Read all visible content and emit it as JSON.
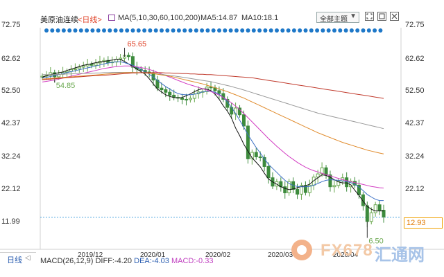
{
  "header": {
    "symbol": "美原油连续",
    "period": "<日线>",
    "ma_label": "MA(5,10,30,60,100,200)",
    "ma5": "MA5:14.87",
    "ma10": "MA10:18.1",
    "theme": "全部主题",
    "theme_arrow": "▼"
  },
  "y_ticks": [
    "72.75",
    "62.62",
    "52.50",
    "42.37",
    "32.24",
    "22.12",
    "11.99"
  ],
  "y_ticks_right": [
    "72.75",
    "62.62",
    "52.50",
    "42.37",
    "32.24",
    "22.12"
  ],
  "x_ticks": [
    "2019/12",
    "2020/01",
    "2020/02",
    "2020/03",
    "2020/04"
  ],
  "last_price": "12.93",
  "bottom": {
    "tab": "日线",
    "tab_arrow": "◁",
    "macd": "MACD(26,12,9)",
    "diff": "DIFF:-4.20",
    "dea": "DEA:-4.03",
    "macd_val": "MACD:-0.33"
  },
  "watermark": {
    "text": "FX678",
    "cn": "汇通网"
  },
  "chart_data": {
    "type": "candlestick",
    "ylim": [
      6.5,
      72.75
    ],
    "y_ticks": [
      72.75,
      62.62,
      52.5,
      42.37,
      32.24,
      22.12,
      11.99
    ],
    "x_ticks": [
      "2019/12",
      "2020/01",
      "2020/02",
      "2020/03",
      "2020/04"
    ],
    "annotations": [
      {
        "label": "65.65",
        "value": 65.65,
        "type": "high"
      },
      {
        "label": "54.85",
        "value": 54.85,
        "type": "low"
      },
      {
        "label": "6.50",
        "value": 6.5,
        "type": "low"
      }
    ],
    "close": [
      56.8,
      57.1,
      57.9,
      56.6,
      57.4,
      58.0,
      58.3,
      58.9,
      59.1,
      59.6,
      60.0,
      60.5,
      60.2,
      60.9,
      61.4,
      61.7,
      61.0,
      61.2,
      62.1,
      62.4,
      63.3,
      62.9,
      59.6,
      59.0,
      58.6,
      58.1,
      57.9,
      55.6,
      53.1,
      52.6,
      51.8,
      50.9,
      50.2,
      50.0,
      49.6,
      49.5,
      49.9,
      51.3,
      51.9,
      52.0,
      53.4,
      53.2,
      52.3,
      51.4,
      49.6,
      47.1,
      45.0,
      46.9,
      44.8,
      41.3,
      31.1,
      33.1,
      31.7,
      31.5,
      28.7,
      25.2,
      22.6,
      24.0,
      22.4,
      20.5,
      24.0,
      21.6,
      20.1,
      22.8,
      20.6,
      22.9,
      25.4,
      26.4,
      28.3,
      26.1,
      22.4,
      22.8,
      24.2,
      25.2,
      22.4,
      24.1,
      22.9,
      19.9,
      16.5,
      11.6,
      14.3,
      16.8,
      15.1,
      13.0
    ],
    "ma_series": [
      {
        "name": "MA5",
        "color": "#111111"
      },
      {
        "name": "MA10",
        "color": "#3b6fc4"
      },
      {
        "name": "MA30",
        "color": "#d23cc2"
      },
      {
        "name": "MA60",
        "color": "#999999"
      },
      {
        "name": "MA100",
        "color": "#e08a2a"
      },
      {
        "name": "MA200",
        "color": "#c0392b"
      }
    ],
    "ma_values": {
      "MA5": [
        56.5,
        56.9,
        57.3,
        57.6,
        57.9,
        58.1,
        58.6,
        59.0,
        59.4,
        59.8,
        60.2,
        60.4,
        60.7,
        61.0,
        61.2,
        61.4,
        61.6,
        61.8,
        62.1,
        62.0,
        61.4,
        60.6,
        59.8,
        59.0,
        58.2,
        57.4,
        56.0,
        54.4,
        52.8,
        51.9,
        51.0,
        50.5,
        50.2,
        50.0,
        50.2,
        50.7,
        51.3,
        52.0,
        52.6,
        52.9,
        52.8,
        52.3,
        51.2,
        49.6,
        47.6,
        45.9,
        43.8,
        40.7,
        38.3,
        35.6,
        33.5,
        31.4,
        30.0,
        28.6,
        26.6,
        24.8,
        23.9,
        23.2,
        22.4,
        21.9,
        21.5,
        21.7,
        22.1,
        22.5,
        22.7,
        23.2,
        24.3,
        25.2,
        26.1,
        25.9,
        25.4,
        24.6,
        23.9,
        23.6,
        23.6,
        23.0,
        21.3,
        19.7,
        17.9,
        16.3,
        15.4,
        14.87,
        14.87,
        14.87
      ],
      "MA10": [
        56.2,
        56.4,
        56.7,
        57.0,
        57.3,
        57.6,
        57.9,
        58.2,
        58.5,
        58.8,
        59.1,
        59.4,
        59.7,
        60.0,
        60.3,
        60.6,
        60.9,
        61.1,
        61.3,
        61.3,
        61.0,
        60.6,
        60.2,
        59.6,
        58.9,
        58.2,
        57.4,
        56.5,
        55.5,
        54.5,
        53.6,
        52.8,
        52.0,
        51.4,
        51.1,
        51.0,
        51.0,
        51.2,
        51.6,
        51.9,
        52.1,
        52.1,
        51.8,
        51.2,
        50.2,
        48.8,
        47.1,
        45.2,
        43.1,
        40.9,
        38.6,
        36.6,
        34.6,
        32.9,
        31.1,
        29.4,
        28.1,
        26.9,
        25.6,
        24.4,
        23.4,
        22.8,
        22.5,
        22.4,
        22.4,
        22.5,
        22.9,
        23.4,
        24.0,
        24.4,
        24.6,
        24.5,
        24.4,
        24.2,
        24.0,
        23.7,
        23.1,
        22.3,
        21.2,
        20.0,
        19.2,
        18.5,
        18.1,
        18.1
      ],
      "MA30": [
        55.0,
        55.2,
        55.4,
        55.6,
        55.9,
        56.2,
        56.5,
        56.8,
        57.1,
        57.4,
        57.7,
        58.0,
        58.3,
        58.6,
        58.9,
        59.2,
        59.4,
        59.6,
        59.8,
        59.9,
        60.0,
        60.0,
        59.9,
        59.7,
        59.5,
        59.2,
        58.9,
        58.5,
        58.0,
        57.5,
        57.0,
        56.5,
        56.0,
        55.5,
        55.0,
        54.5,
        54.1,
        53.7,
        53.3,
        52.9,
        52.5,
        52.0,
        51.5,
        50.9,
        50.2,
        49.4,
        48.5,
        47.5,
        46.4,
        45.2,
        43.9,
        42.6,
        41.3,
        40.0,
        38.7,
        37.4,
        36.2,
        35.0,
        33.9,
        32.8,
        31.8,
        30.9,
        30.0,
        29.2,
        28.5,
        27.9,
        27.4,
        27.0,
        26.6,
        26.2,
        25.8,
        25.4,
        25.0,
        24.6,
        24.3,
        24.0,
        23.7,
        23.4,
        23.1,
        22.8,
        22.5,
        22.3,
        22.1,
        22.0
      ],
      "MA60": [
        57.3,
        57.3,
        57.3,
        57.3,
        57.4,
        57.4,
        57.5,
        57.5,
        57.6,
        57.6,
        57.7,
        57.7,
        57.7,
        57.8,
        57.8,
        57.9,
        57.9,
        58.0,
        58.0,
        58.0,
        58.0,
        58.0,
        58.0,
        57.9,
        57.9,
        57.8,
        57.7,
        57.6,
        57.5,
        57.4,
        57.2,
        57.0,
        56.9,
        56.7,
        56.5,
        56.3,
        56.1,
        55.9,
        55.7,
        55.5,
        55.3,
        55.1,
        54.8,
        54.5,
        54.2,
        53.9,
        53.6,
        53.2,
        52.9,
        52.5,
        52.1,
        51.7,
        51.3,
        50.9,
        50.5,
        50.1,
        49.7,
        49.3,
        48.9,
        48.5,
        48.1,
        47.7,
        47.3,
        46.9,
        46.5,
        46.1,
        45.7,
        45.3,
        45.0,
        44.7,
        44.4,
        44.1,
        43.8,
        43.5,
        43.2,
        42.9,
        42.6,
        42.3,
        42.0,
        41.7,
        41.4,
        41.1,
        40.8,
        40.5
      ],
      "MA100": [
        55.9,
        56.0,
        56.1,
        56.2,
        56.3,
        56.4,
        56.5,
        56.6,
        56.7,
        56.8,
        56.9,
        57.0,
        57.1,
        57.2,
        57.3,
        57.4,
        57.5,
        57.6,
        57.7,
        57.8,
        57.9,
        57.9,
        57.9,
        57.9,
        57.9,
        57.8,
        57.7,
        57.6,
        57.4,
        57.2,
        57.0,
        56.8,
        56.5,
        56.2,
        55.9,
        55.6,
        55.3,
        55.0,
        54.7,
        54.4,
        54.0,
        53.6,
        53.2,
        52.8,
        52.4,
        52.0,
        51.5,
        51.0,
        50.5,
        50.0,
        49.4,
        48.8,
        48.2,
        47.6,
        47.0,
        46.4,
        45.8,
        45.2,
        44.6,
        44.0,
        43.4,
        42.8,
        42.2,
        41.6,
        41.0,
        40.4,
        39.8,
        39.2,
        38.7,
        38.2,
        37.7,
        37.2,
        36.7,
        36.2,
        35.8,
        35.4,
        35.0,
        34.6,
        34.2,
        33.8,
        33.5,
        33.2,
        32.9,
        32.6
      ],
      "MA200": [
        55.7,
        55.8,
        55.9,
        56.0,
        56.1,
        56.2,
        56.3,
        56.4,
        56.5,
        56.6,
        56.7,
        56.8,
        56.9,
        57.0,
        57.0,
        57.1,
        57.2,
        57.3,
        57.4,
        57.5,
        57.6,
        57.7,
        57.8,
        57.8,
        57.9,
        57.9,
        57.9,
        57.9,
        57.9,
        57.9,
        57.8,
        57.8,
        57.7,
        57.7,
        57.6,
        57.6,
        57.5,
        57.5,
        57.4,
        57.4,
        57.3,
        57.3,
        57.2,
        57.1,
        57.0,
        56.9,
        56.8,
        56.7,
        56.6,
        56.5,
        56.4,
        56.3,
        56.1,
        55.9,
        55.7,
        55.5,
        55.3,
        55.1,
        54.9,
        54.7,
        54.5,
        54.3,
        54.1,
        53.9,
        53.7,
        53.5,
        53.3,
        53.1,
        52.9,
        52.7,
        52.5,
        52.3,
        52.1,
        51.9,
        51.7,
        51.5,
        51.3,
        51.1,
        50.9,
        50.7,
        50.5,
        50.3,
        50.1,
        49.9
      ]
    },
    "last_price": 12.93
  }
}
